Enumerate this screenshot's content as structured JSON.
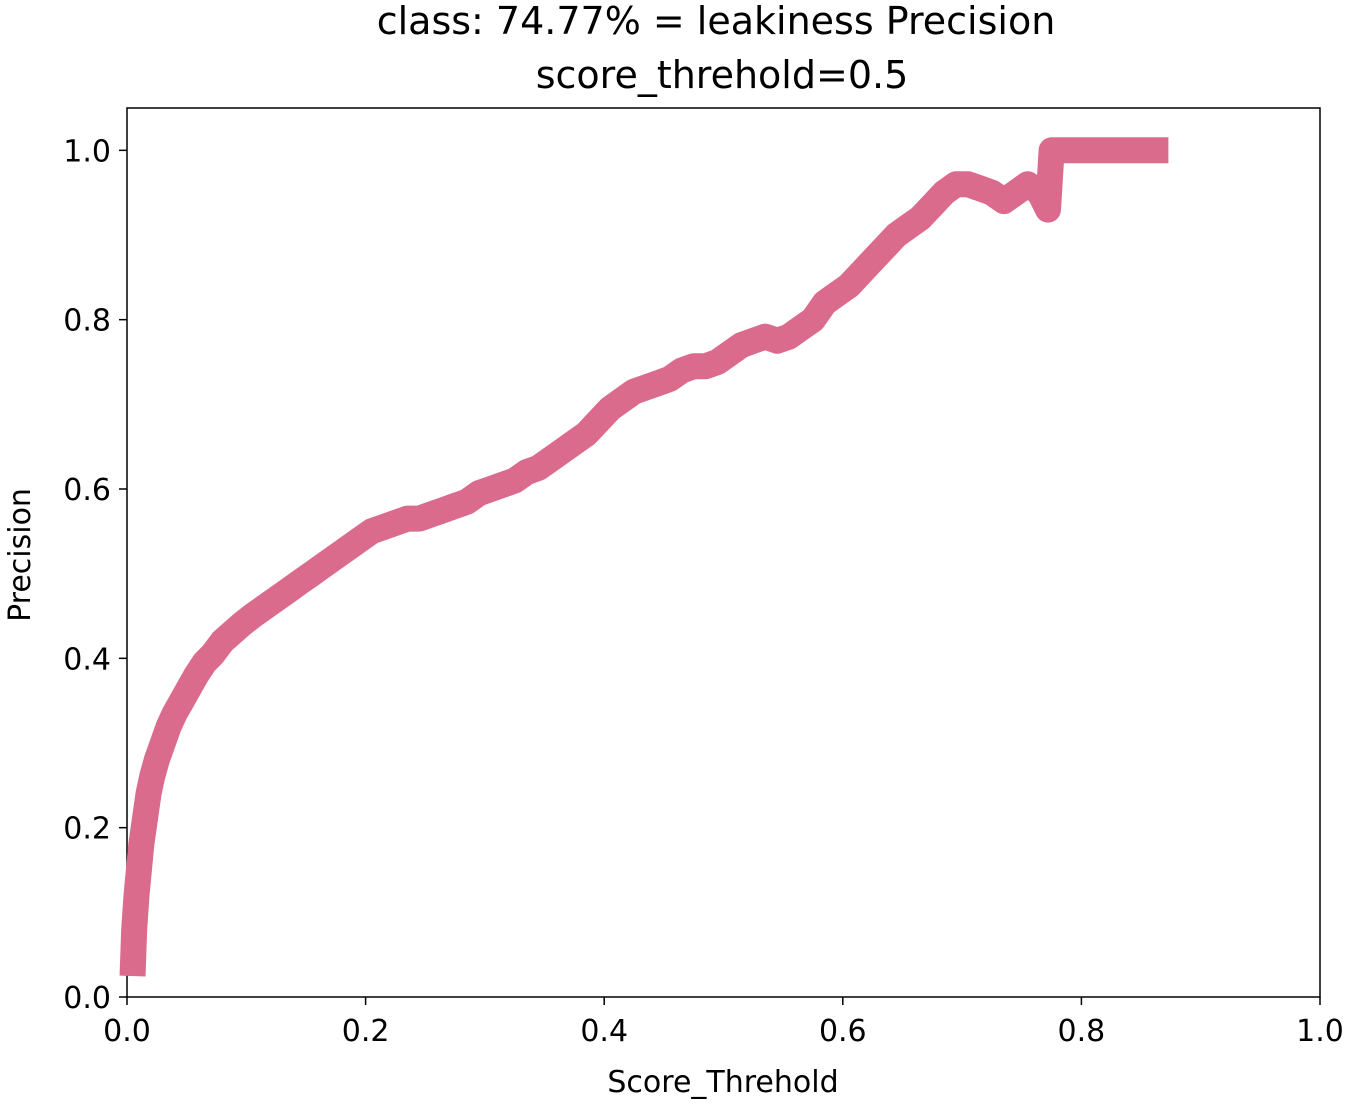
{
  "chart_data": {
    "type": "scatter",
    "title": "class: 74.77% = leakiness Precision",
    "subtitle": "score_threhold=0.5",
    "xlabel": "Score_Threhold",
    "ylabel": "Precision",
    "xlim": [
      0.0,
      1.0
    ],
    "ylim": [
      0.0,
      1.05
    ],
    "grid": false,
    "xticks": [
      "0.0",
      "0.2",
      "0.4",
      "0.6",
      "0.8",
      "1.0"
    ],
    "yticks": [
      "0.0",
      "0.2",
      "0.4",
      "0.6",
      "0.8",
      "1.0"
    ],
    "series": [
      {
        "color": "#db6b8d",
        "marker": "square",
        "x": [
          0.005,
          0.006,
          0.008,
          0.01,
          0.012,
          0.015,
          0.018,
          0.021,
          0.025,
          0.03,
          0.035,
          0.04,
          0.046,
          0.052,
          0.058,
          0.065,
          0.072,
          0.08,
          0.088,
          0.096,
          0.105,
          0.115,
          0.125,
          0.135,
          0.145,
          0.155,
          0.165,
          0.175,
          0.185,
          0.195,
          0.205,
          0.215,
          0.225,
          0.235,
          0.245,
          0.255,
          0.265,
          0.275,
          0.285,
          0.295,
          0.305,
          0.315,
          0.325,
          0.335,
          0.345,
          0.355,
          0.365,
          0.375,
          0.385,
          0.395,
          0.405,
          0.415,
          0.425,
          0.435,
          0.445,
          0.455,
          0.465,
          0.475,
          0.485,
          0.495,
          0.505,
          0.515,
          0.525,
          0.535,
          0.545,
          0.555,
          0.565,
          0.575,
          0.585,
          0.595,
          0.605,
          0.615,
          0.625,
          0.635,
          0.645,
          0.655,
          0.665,
          0.675,
          0.685,
          0.695,
          0.705,
          0.715,
          0.725,
          0.735,
          0.745,
          0.755,
          0.765,
          0.772,
          0.775,
          0.785,
          0.8,
          0.82,
          0.84,
          0.862
        ],
        "y": [
          0.04,
          0.08,
          0.12,
          0.15,
          0.18,
          0.21,
          0.24,
          0.26,
          0.28,
          0.3,
          0.32,
          0.335,
          0.35,
          0.365,
          0.38,
          0.395,
          0.405,
          0.42,
          0.43,
          0.44,
          0.45,
          0.46,
          0.47,
          0.48,
          0.49,
          0.5,
          0.51,
          0.52,
          0.53,
          0.54,
          0.55,
          0.555,
          0.56,
          0.565,
          0.565,
          0.57,
          0.575,
          0.58,
          0.585,
          0.595,
          0.6,
          0.605,
          0.61,
          0.62,
          0.625,
          0.635,
          0.645,
          0.655,
          0.665,
          0.68,
          0.695,
          0.705,
          0.715,
          0.72,
          0.725,
          0.73,
          0.74,
          0.745,
          0.745,
          0.75,
          0.76,
          0.77,
          0.775,
          0.78,
          0.775,
          0.78,
          0.79,
          0.8,
          0.82,
          0.83,
          0.84,
          0.855,
          0.87,
          0.885,
          0.9,
          0.91,
          0.92,
          0.935,
          0.95,
          0.96,
          0.96,
          0.955,
          0.95,
          0.94,
          0.95,
          0.96,
          0.95,
          0.93,
          1.0,
          1.0,
          1.0,
          1.0,
          1.0,
          1.0
        ]
      }
    ]
  }
}
